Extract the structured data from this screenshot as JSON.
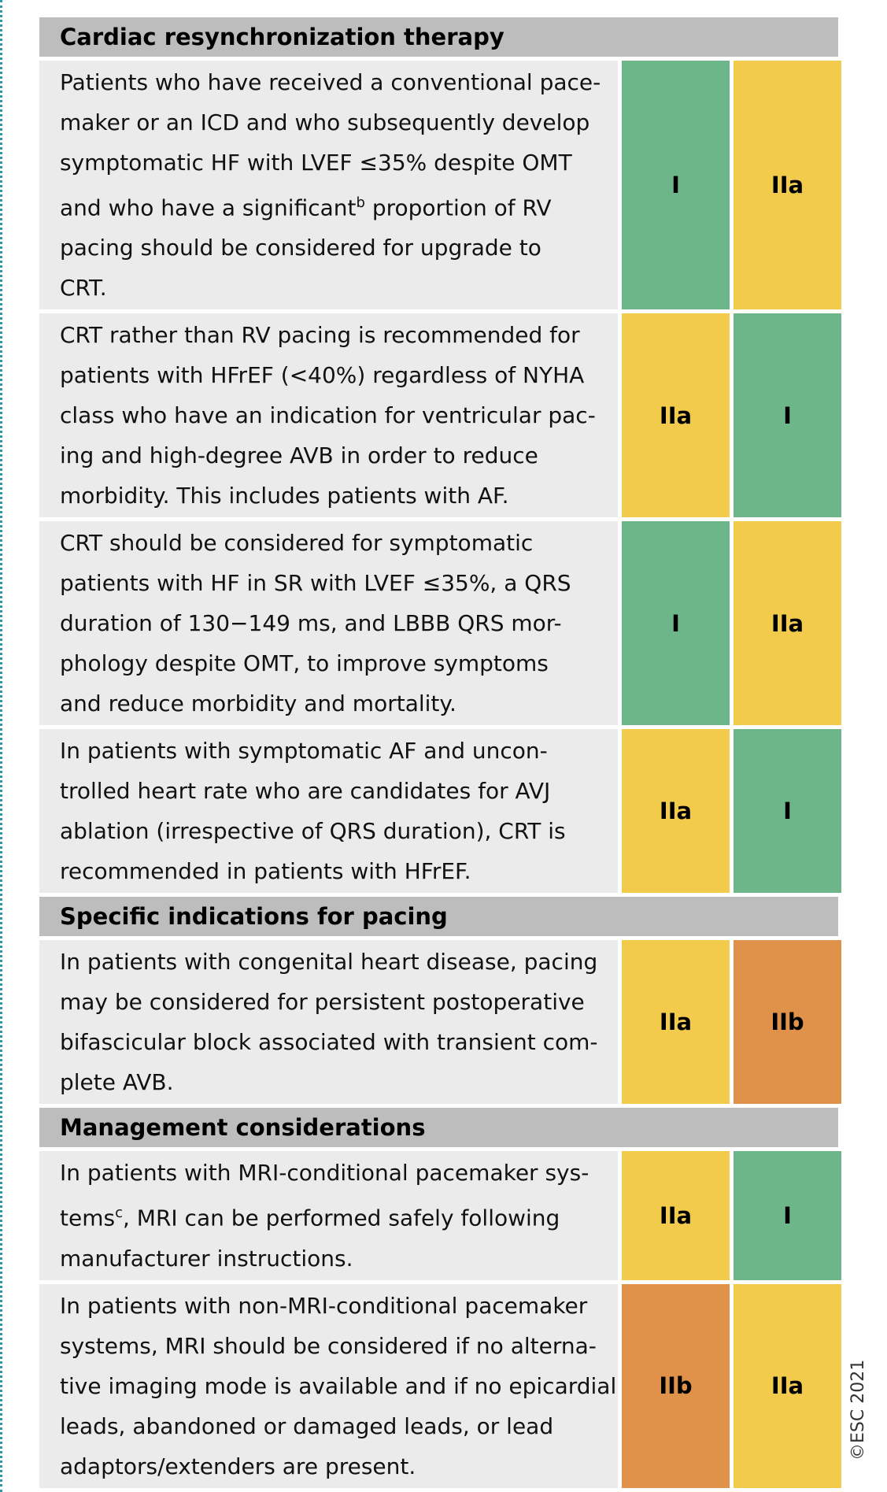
{
  "colors": {
    "I": "#6db68a",
    "IIa": "#f2ca4c",
    "IIb": "#e0914a"
  },
  "sections": [
    {
      "heading": "Cardiac resynchronization therapy",
      "rows": [
        {
          "lines": [
            "Patients who have received a conventional pace-",
            "maker or an ICD and who subsequently develop",
            "symptomatic HF with LVEF ≤35% despite OMT",
            {
              "before": "and who have a significant",
              "sup": "b",
              "after": " proportion of RV"
            },
            "pacing should be considered for upgrade to",
            "CRT."
          ],
          "classes": [
            "I",
            "IIa"
          ]
        },
        {
          "lines": [
            "CRT rather than RV pacing is recommended for",
            "patients with HFrEF (<40%) regardless of NYHA",
            "class who have an indication for ventricular pac-",
            "ing and high-degree AVB in order to reduce",
            "morbidity. This includes patients with AF."
          ],
          "classes": [
            "IIa",
            "I"
          ]
        },
        {
          "lines": [
            "CRT should be considered for symptomatic",
            "patients with HF in SR with LVEF ≤35%, a QRS",
            "duration of 130−149 ms, and LBBB QRS mor-",
            "phology despite OMT, to improve symptoms",
            "and reduce morbidity and mortality."
          ],
          "classes": [
            "I",
            "IIa"
          ]
        },
        {
          "lines": [
            "In patients with symptomatic AF and uncon-",
            "trolled heart rate who are candidates for AVJ",
            "ablation (irrespective of QRS duration), CRT is",
            "recommended in patients with HFrEF."
          ],
          "classes": [
            "IIa",
            "I"
          ]
        }
      ]
    },
    {
      "heading": "Specific indications for pacing",
      "rows": [
        {
          "lines": [
            "In patients with congenital heart disease, pacing",
            "may be considered for persistent postoperative",
            "bifascicular block associated with transient com-",
            "plete AVB."
          ],
          "classes": [
            "IIa",
            "IIb"
          ]
        }
      ]
    },
    {
      "heading": "Management considerations",
      "rows": [
        {
          "lines": [
            "In patients with MRI-conditional pacemaker sys-",
            {
              "before": "tems",
              "sup": "c",
              "after": ", MRI can be performed safely following"
            },
            "manufacturer instructions."
          ],
          "classes": [
            "IIa",
            "I"
          ]
        },
        {
          "lines": [
            "In patients with non-MRI-conditional pacemaker",
            "systems, MRI should be considered if no alterna-",
            "tive imaging mode is available and if no epicardial",
            "leads, abandoned or damaged leads, or lead",
            "adaptors/extenders are present."
          ],
          "classes": [
            "IIb",
            "IIa"
          ]
        }
      ]
    }
  ],
  "copyright": "©ESC 2021"
}
